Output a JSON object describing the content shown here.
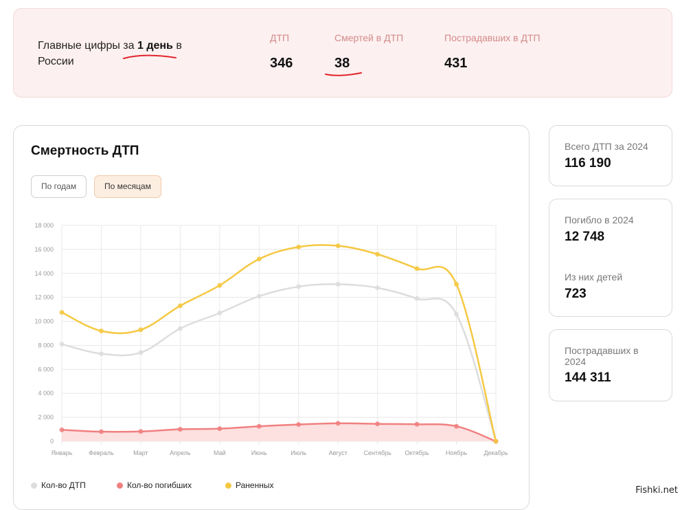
{
  "banner": {
    "title_prefix": "Главные цифры за ",
    "title_bold": "1 день",
    "title_suffix": " в России",
    "stats": [
      {
        "label": "ДТП",
        "value": "346"
      },
      {
        "label": "Смертей в ДТП",
        "value": "38"
      },
      {
        "label": "Пострадавших в ДТП",
        "value": "431"
      }
    ],
    "underline_color": "#e0242c"
  },
  "card": {
    "title": "Смертность ДТП",
    "toggle_years": "По годам",
    "toggle_months": "По месяцам"
  },
  "chart_data": {
    "type": "line",
    "categories": [
      "Январь",
      "Февраль",
      "Март",
      "Апрель",
      "Май",
      "Июнь",
      "Июль",
      "Август",
      "Сентябрь",
      "Октябрь",
      "Ноябрь",
      "Декабрь"
    ],
    "ylim": [
      0,
      18000
    ],
    "yticks": [
      0,
      2000,
      4000,
      6000,
      8000,
      10000,
      12000,
      14000,
      16000,
      18000
    ],
    "ytick_labels": [
      "0",
      "2 000",
      "4 000",
      "6 000",
      "8 000",
      "10 000",
      "12 000",
      "14 000",
      "16 000",
      "18 000"
    ],
    "grid": true,
    "legend_position": "bottom-left",
    "series": [
      {
        "name": "Кол-во ДТП",
        "color": "#dddddd",
        "values": [
          8100,
          7300,
          7400,
          9400,
          10700,
          12100,
          12900,
          13100,
          12800,
          11900,
          10600,
          0
        ]
      },
      {
        "name": "Кол-во погибших",
        "color": "#f08080",
        "fill": "#fde0e0",
        "values": [
          950,
          800,
          820,
          1000,
          1050,
          1250,
          1400,
          1500,
          1450,
          1420,
          1250,
          0
        ]
      },
      {
        "name": "Раненных",
        "color": "#f5c842",
        "values": [
          10750,
          9200,
          9300,
          11300,
          13000,
          15200,
          16200,
          16300,
          15600,
          14400,
          13100,
          0
        ]
      }
    ]
  },
  "side": [
    {
      "label": "Всего ДТП за 2024",
      "value": "116 190"
    },
    {
      "label": "Погибло в 2024",
      "value": "12 748"
    },
    {
      "label": "Из них детей",
      "value": "723"
    },
    {
      "label": "Пострадавших в 2024",
      "value": "144 311"
    }
  ],
  "watermark": "Fishki.net"
}
